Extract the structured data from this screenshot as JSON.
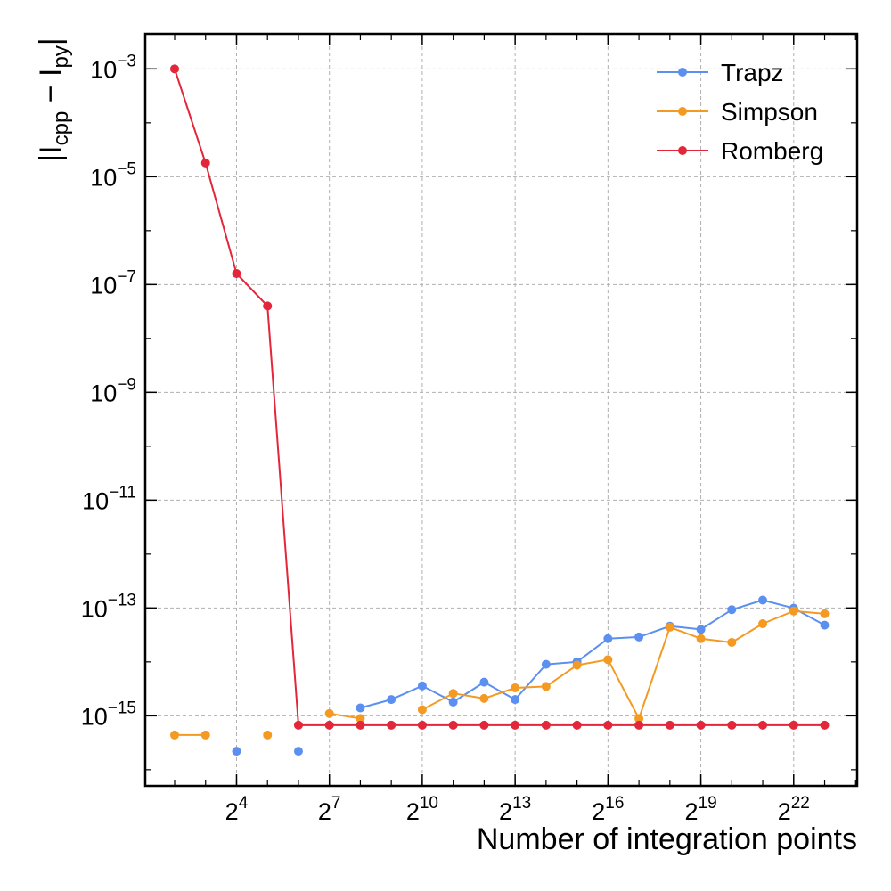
{
  "chart_data": {
    "type": "line",
    "xlabel": "Number of integration points",
    "ylabel": {
      "prefix": "|I",
      "sub1": "cpp",
      "middle": " − I",
      "sub2": "py",
      "suffix": "|"
    },
    "x_scale": "log2",
    "y_scale": "log10",
    "xlim_exponent": [
      1.05,
      24.05
    ],
    "ylim_exponent": [
      -16.3,
      -2.35
    ],
    "x_ticks": [
      {
        "base": "2",
        "exp": "4",
        "value": 16
      },
      {
        "base": "2",
        "exp": "7",
        "value": 128
      },
      {
        "base": "2",
        "exp": "10",
        "value": 1024
      },
      {
        "base": "2",
        "exp": "13",
        "value": 8192
      },
      {
        "base": "2",
        "exp": "16",
        "value": 65536
      },
      {
        "base": "2",
        "exp": "19",
        "value": 524288
      },
      {
        "base": "2",
        "exp": "22",
        "value": 4194304
      }
    ],
    "y_ticks": [
      {
        "base": "10",
        "exp": "−3",
        "value": 0.001
      },
      {
        "base": "10",
        "exp": "−5",
        "value": 1e-05
      },
      {
        "base": "10",
        "exp": "−7",
        "value": 1e-07
      },
      {
        "base": "10",
        "exp": "−9",
        "value": 1e-09
      },
      {
        "base": "10",
        "exp": "−11",
        "value": 1e-11
      },
      {
        "base": "10",
        "exp": "−13",
        "value": 1e-13
      },
      {
        "base": "10",
        "exp": "−15",
        "value": 1e-15
      }
    ],
    "grid": true,
    "legend_position": "top-right",
    "series": [
      {
        "name": "Trapz",
        "color": "#5b8ff0",
        "points": [
          [
            16,
            2.2e-16
          ],
          [
            64,
            2.2e-16
          ],
          [
            256,
            1.4e-15
          ],
          [
            512,
            2e-15
          ],
          [
            1024,
            3.6e-15
          ],
          [
            2048,
            1.8e-15
          ],
          [
            4096,
            4.2e-15
          ],
          [
            8192,
            2e-15
          ],
          [
            16384,
            9e-15
          ],
          [
            32768,
            1e-14
          ],
          [
            65536,
            2.7e-14
          ],
          [
            131072,
            2.9e-14
          ],
          [
            262144,
            4.6e-14
          ],
          [
            524288,
            4e-14
          ],
          [
            1048576,
            9.3e-14
          ],
          [
            2097152,
            1.4e-13
          ],
          [
            4194304,
            9.9e-14
          ],
          [
            8388608,
            4.8e-14
          ]
        ]
      },
      {
        "name": "Simpson",
        "color": "#f49a22",
        "points": [
          [
            4,
            4.4e-16
          ],
          [
            8,
            4.4e-16
          ],
          [
            32,
            4.4e-16
          ],
          [
            128,
            1.1e-15
          ],
          [
            256,
            8.9e-16
          ],
          [
            1024,
            1.3e-15
          ],
          [
            2048,
            2.6e-15
          ],
          [
            4096,
            2.1e-15
          ],
          [
            8192,
            3.3e-15
          ],
          [
            16384,
            3.5e-15
          ],
          [
            32768,
            8.7e-15
          ],
          [
            65536,
            1.1e-14
          ],
          [
            131072,
            8.9e-16
          ],
          [
            262144,
            4.4e-14
          ],
          [
            524288,
            2.7e-14
          ],
          [
            1048576,
            2.3e-14
          ],
          [
            2097152,
            5.1e-14
          ],
          [
            4194304,
            8.8e-14
          ],
          [
            8388608,
            7.8e-14
          ]
        ]
      },
      {
        "name": "Romberg",
        "color": "#e3263a",
        "points": [
          [
            4,
            0.001
          ],
          [
            8,
            1.8e-05
          ],
          [
            16,
            1.6e-07
          ],
          [
            32,
            4e-08
          ],
          [
            64,
            6.7e-16
          ],
          [
            128,
            6.7e-16
          ],
          [
            256,
            6.7e-16
          ],
          [
            512,
            6.7e-16
          ],
          [
            1024,
            6.7e-16
          ],
          [
            2048,
            6.7e-16
          ],
          [
            4096,
            6.7e-16
          ],
          [
            8192,
            6.7e-16
          ],
          [
            16384,
            6.7e-16
          ],
          [
            32768,
            6.7e-16
          ],
          [
            65536,
            6.7e-16
          ],
          [
            131072,
            6.7e-16
          ],
          [
            262144,
            6.7e-16
          ],
          [
            524288,
            6.7e-16
          ],
          [
            1048576,
            6.7e-16
          ],
          [
            2097152,
            6.7e-16
          ],
          [
            4194304,
            6.7e-16
          ],
          [
            8388608,
            6.7e-16
          ]
        ]
      }
    ],
    "line_segments": {
      "Trapz": [
        [
          256,
          512,
          1024,
          2048,
          4096,
          8192,
          16384,
          32768,
          65536,
          131072,
          262144,
          524288,
          1048576,
          2097152,
          4194304,
          8388608
        ]
      ],
      "Simpson": [
        [
          4,
          8
        ],
        [
          128,
          256
        ],
        [
          1024,
          2048,
          4096,
          8192,
          16384,
          32768,
          65536,
          131072,
          262144,
          524288,
          1048576,
          2097152,
          4194304,
          8388608
        ]
      ],
      "Romberg": [
        [
          4,
          8,
          16,
          32,
          64,
          128,
          256,
          512,
          1024,
          2048,
          4096,
          8192,
          16384,
          32768,
          65536,
          131072,
          262144,
          524288,
          1048576,
          2097152,
          4194304,
          8388608
        ]
      ]
    }
  }
}
